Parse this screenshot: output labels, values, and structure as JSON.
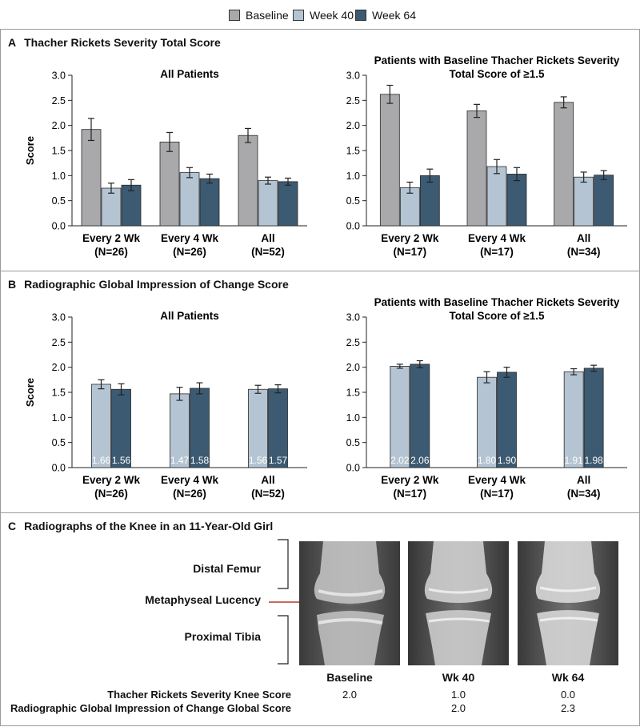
{
  "legend": {
    "items": [
      {
        "label": "Baseline",
        "color": "#a9a9ac"
      },
      {
        "label": "Week 40",
        "color": "#b4c4d2"
      },
      {
        "label": "Week 64",
        "color": "#3c5a72"
      }
    ]
  },
  "panels": {
    "a": {
      "letter": "A",
      "title": "Thacher Rickets Severity Total Score"
    },
    "b": {
      "letter": "B",
      "title": "Radiographic Global Impression of Change Score"
    },
    "c": {
      "letter": "C",
      "title": "Radiographs of the Knee in an 11-Year-Old Girl"
    }
  },
  "chart_data": [
    {
      "id": "A-left",
      "type": "bar",
      "title": "All Patients",
      "ylabel": "Score",
      "ylim": [
        0,
        3.0
      ],
      "yticks": [
        "0.0",
        "0.5",
        "1.0",
        "1.5",
        "2.0",
        "2.5",
        "3.0"
      ],
      "categories": [
        "Every 2 Wk",
        "Every 4 Wk",
        "All"
      ],
      "category_ns": [
        "(N=26)",
        "(N=26)",
        "(N=52)"
      ],
      "series": [
        {
          "name": "Baseline",
          "values": [
            1.92,
            1.67,
            1.8
          ],
          "errors": [
            0.22,
            0.19,
            0.14
          ]
        },
        {
          "name": "Week 40",
          "values": [
            0.75,
            1.06,
            0.9
          ],
          "errors": [
            0.1,
            0.1,
            0.07
          ]
        },
        {
          "name": "Week 64",
          "values": [
            0.81,
            0.94,
            0.88
          ],
          "errors": [
            0.11,
            0.09,
            0.07
          ]
        }
      ]
    },
    {
      "id": "A-right",
      "type": "bar",
      "title": "Patients with Baseline Thacher Rickets Severity",
      "title2": "Total Score of ≥1.5",
      "ylim": [
        0,
        3.0
      ],
      "yticks": [
        "0.0",
        "0.5",
        "1.0",
        "1.5",
        "2.0",
        "2.5",
        "3.0"
      ],
      "categories": [
        "Every 2 Wk",
        "Every 4 Wk",
        "All"
      ],
      "category_ns": [
        "(N=17)",
        "(N=17)",
        "(N=34)"
      ],
      "series": [
        {
          "name": "Baseline",
          "values": [
            2.62,
            2.29,
            2.46
          ],
          "errors": [
            0.18,
            0.13,
            0.11
          ]
        },
        {
          "name": "Week 40",
          "values": [
            0.76,
            1.18,
            0.97
          ],
          "errors": [
            0.11,
            0.14,
            0.1
          ]
        },
        {
          "name": "Week 64",
          "values": [
            1.0,
            1.03,
            1.01
          ],
          "errors": [
            0.13,
            0.13,
            0.09
          ]
        }
      ]
    },
    {
      "id": "B-left",
      "type": "bar",
      "title": "All Patients",
      "ylabel": "Score",
      "ylim": [
        0,
        3.0
      ],
      "yticks": [
        "0.0",
        "0.5",
        "1.0",
        "1.5",
        "2.0",
        "2.5",
        "3.0"
      ],
      "categories": [
        "Every 2 Wk",
        "Every 4 Wk",
        "All"
      ],
      "category_ns": [
        "(N=26)",
        "(N=26)",
        "(N=52)"
      ],
      "series": [
        {
          "name": "Week 40",
          "values": [
            1.66,
            1.47,
            1.56
          ],
          "errors": [
            0.09,
            0.13,
            0.08
          ],
          "labels": [
            "1.66",
            "1.47",
            "1.56"
          ]
        },
        {
          "name": "Week 64",
          "values": [
            1.56,
            1.58,
            1.57
          ],
          "errors": [
            0.11,
            0.11,
            0.08
          ],
          "labels": [
            "1.56",
            "1.58",
            "1.57"
          ]
        }
      ]
    },
    {
      "id": "B-right",
      "type": "bar",
      "title": "Patients with Baseline Thacher Rickets Severity",
      "title2": "Total Score of ≥1.5",
      "ylim": [
        0,
        3.0
      ],
      "yticks": [
        "0.0",
        "0.5",
        "1.0",
        "1.5",
        "2.0",
        "2.5",
        "3.0"
      ],
      "categories": [
        "Every 2 Wk",
        "Every 4 Wk",
        "All"
      ],
      "category_ns": [
        "(N=17)",
        "(N=17)",
        "(N=34)"
      ],
      "series": [
        {
          "name": "Week 40",
          "values": [
            2.02,
            1.8,
            1.91
          ],
          "errors": [
            0.04,
            0.11,
            0.06
          ],
          "labels": [
            "2.02",
            "1.80",
            "1.91"
          ]
        },
        {
          "name": "Week 64",
          "values": [
            2.06,
            1.9,
            1.98
          ],
          "errors": [
            0.07,
            0.1,
            0.06
          ],
          "labels": [
            "2.06",
            "1.90",
            "1.98"
          ]
        }
      ]
    }
  ],
  "radiographs": {
    "labels": {
      "distal_femur": "Distal Femur",
      "metaphyseal_lucency": "Metaphyseal Lucency",
      "proximal_tibia": "Proximal Tibia"
    },
    "timepoints": [
      "Baseline",
      "Wk 40",
      "Wk 64"
    ],
    "score_rows": [
      {
        "label": "Thacher Rickets Severity Knee Score",
        "values": [
          "2.0",
          "1.0",
          "0.0"
        ]
      },
      {
        "label": "Radiographic Global Impression of Change Global Score",
        "values": [
          "",
          "2.0",
          "2.3"
        ]
      }
    ]
  }
}
